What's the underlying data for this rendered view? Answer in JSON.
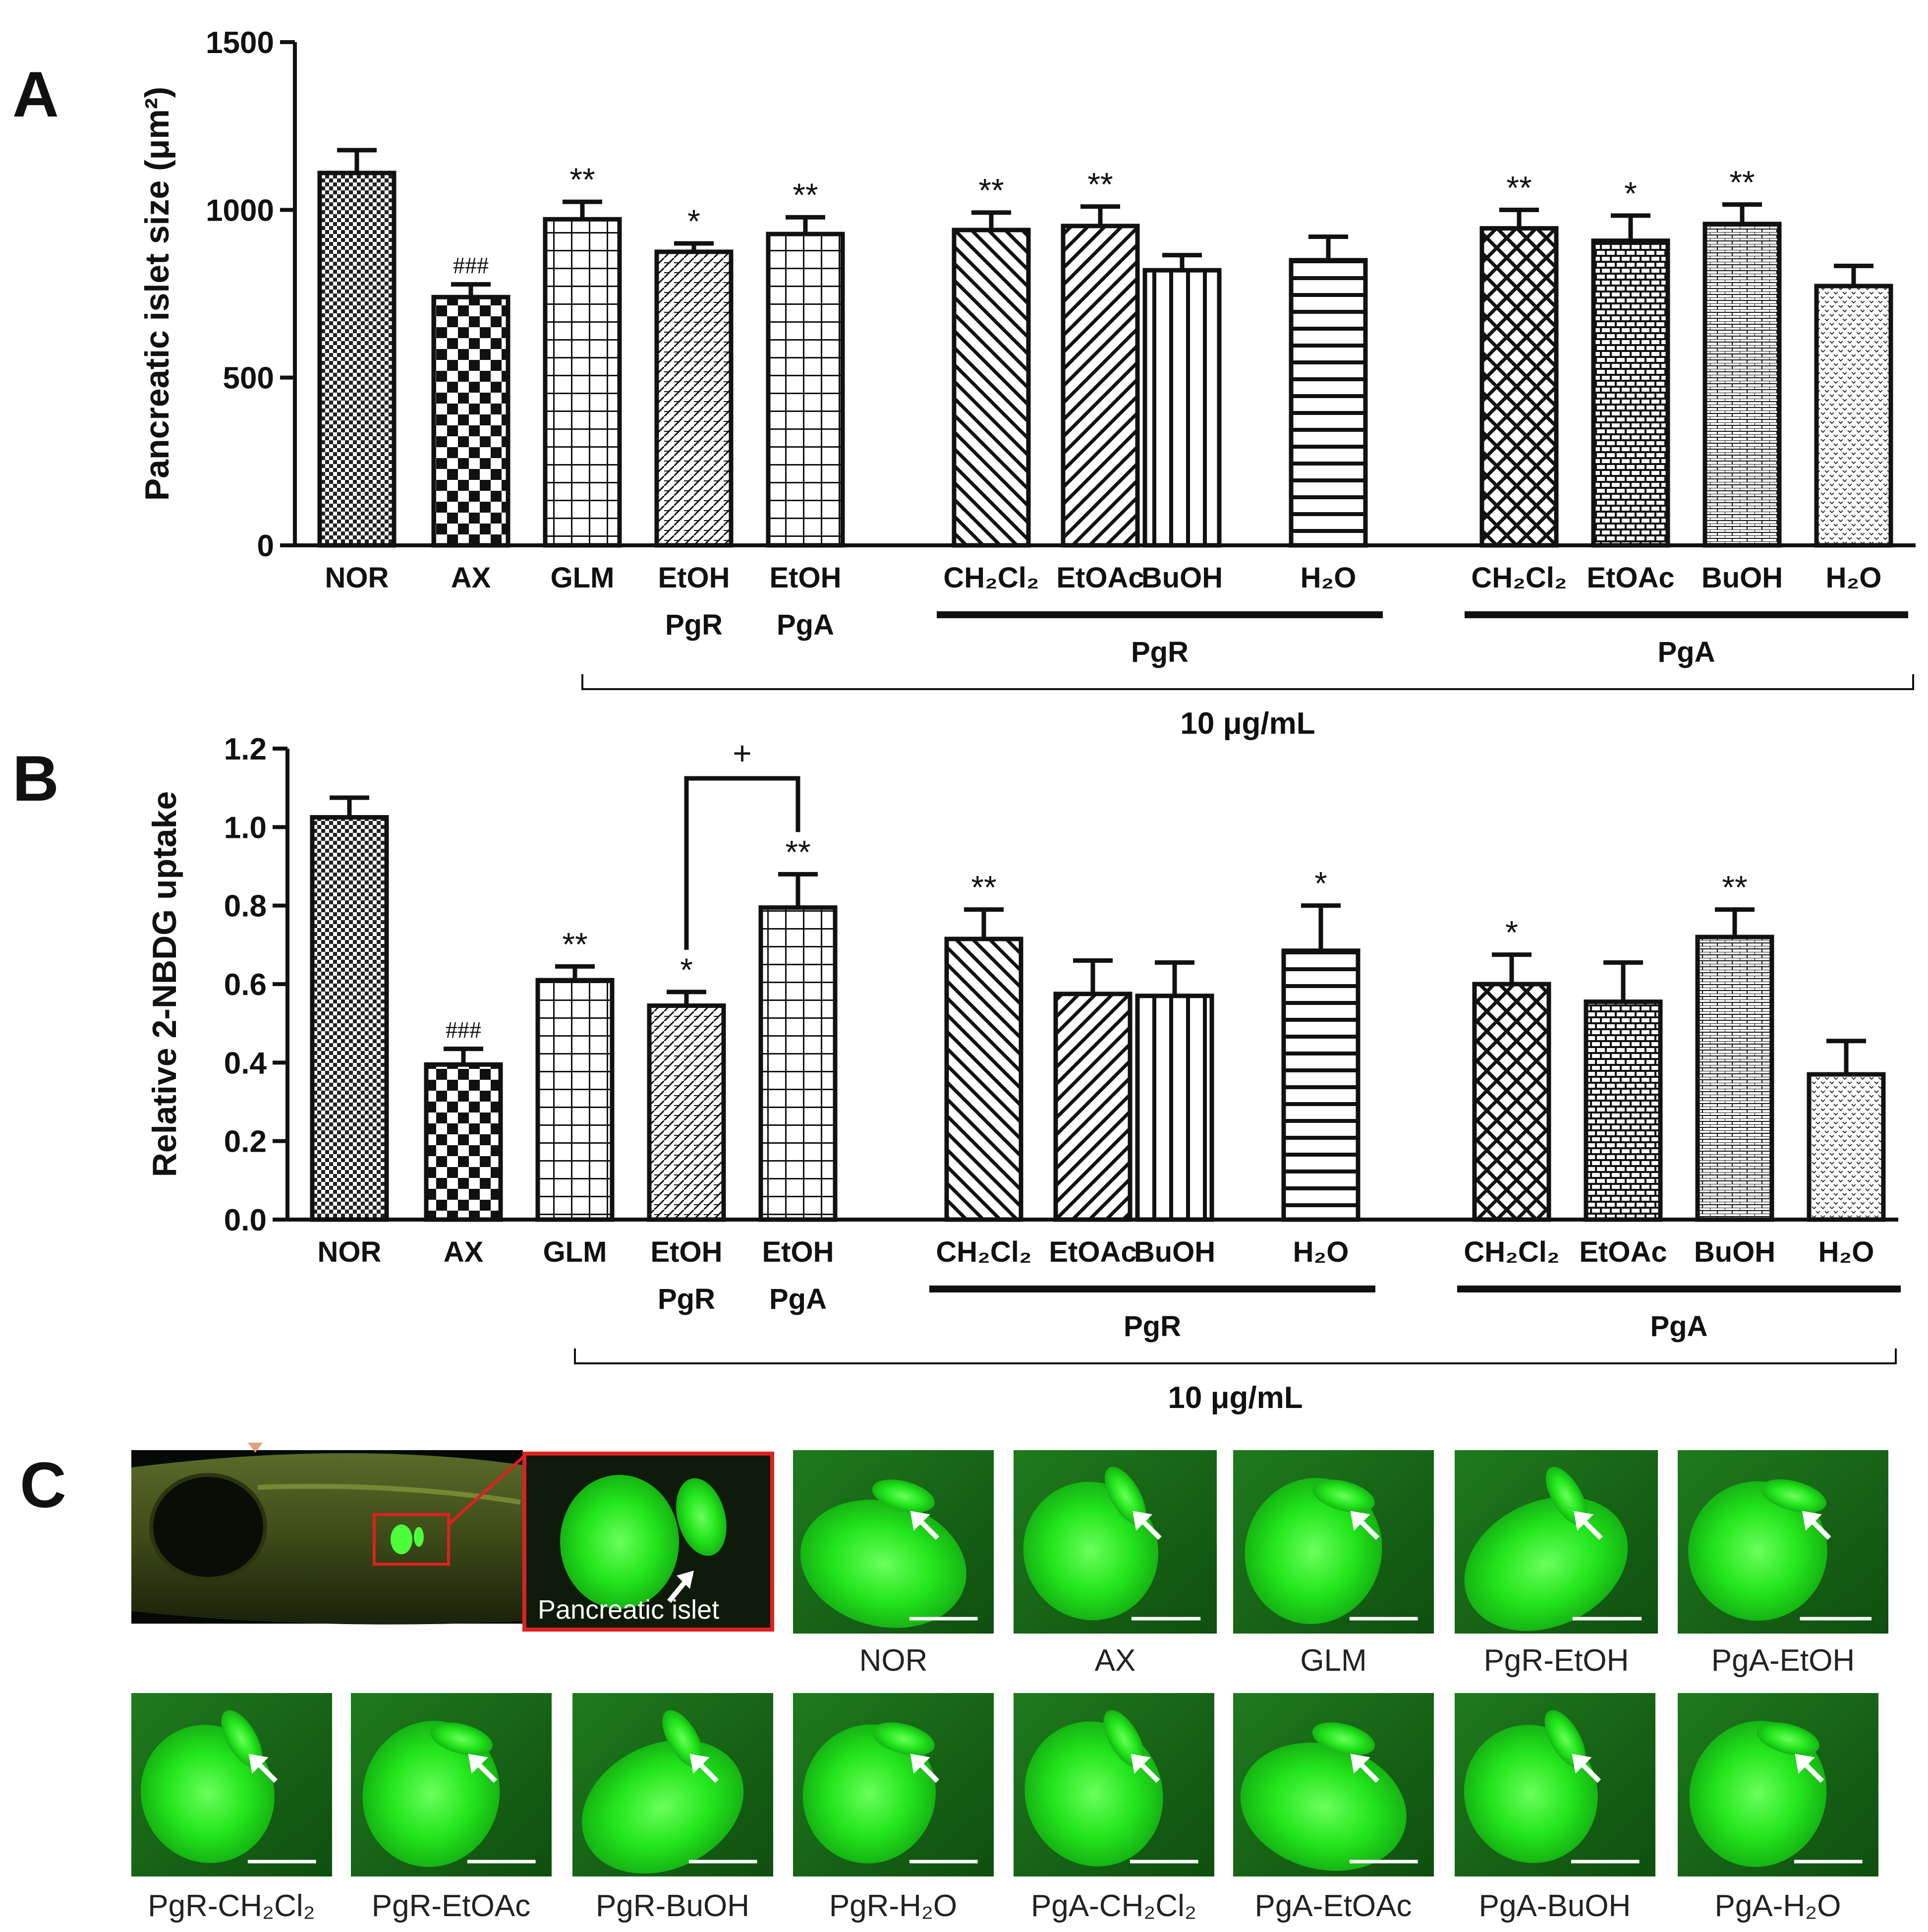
{
  "panels": {
    "a": "A",
    "b": "B",
    "c": "C"
  },
  "chart_data": [
    {
      "type": "bar",
      "panel": "A",
      "ylabel": "Pancreatic islet size (μm²)",
      "ylim": [
        0,
        1500
      ],
      "yticks": [
        "0",
        "500",
        "1000",
        "1500"
      ],
      "categories": [
        {
          "line1": "NOR",
          "line2": ""
        },
        {
          "line1": "AX",
          "line2": ""
        },
        {
          "line1": "GLM",
          "line2": ""
        },
        {
          "line1": "EtOH",
          "line2": "PgR"
        },
        {
          "line1": "EtOH",
          "line2": "PgA"
        },
        {
          "line1": "CH₂Cl₂",
          "line2": ""
        },
        {
          "line1": "EtOAc",
          "line2": ""
        },
        {
          "line1": "BuOH",
          "line2": ""
        },
        {
          "line1": "H₂O",
          "line2": ""
        },
        {
          "line1": "CH₂Cl₂",
          "line2": ""
        },
        {
          "line1": "EtOAc",
          "line2": ""
        },
        {
          "line1": "BuOH",
          "line2": ""
        },
        {
          "line1": "H₂O",
          "line2": ""
        }
      ],
      "values": [
        1110,
        740,
        972,
        875,
        928,
        940,
        952,
        820,
        850,
        945,
        908,
        958,
        773
      ],
      "errors": [
        68,
        38,
        52,
        25,
        50,
        52,
        58,
        45,
        70,
        55,
        75,
        58,
        60
      ],
      "significance": [
        "",
        "###",
        "**",
        "*",
        "**",
        "**",
        "**",
        "",
        "",
        "**",
        "*",
        "**",
        ""
      ],
      "groups": [
        {
          "label": "PgR"
        },
        {
          "label": "PgA"
        }
      ],
      "bracket_label": "10 μg/mL"
    },
    {
      "type": "bar",
      "panel": "B",
      "ylabel": "Relative 2-NBDG uptake",
      "ylim": [
        0,
        1.2
      ],
      "yticks": [
        "0.0",
        "0.2",
        "0.4",
        "0.6",
        "0.8",
        "1.0",
        "1.2"
      ],
      "categories": [
        {
          "line1": "NOR",
          "line2": ""
        },
        {
          "line1": "AX",
          "line2": ""
        },
        {
          "line1": "GLM",
          "line2": ""
        },
        {
          "line1": "EtOH",
          "line2": "PgR"
        },
        {
          "line1": "EtOH",
          "line2": "PgA"
        },
        {
          "line1": "CH₂Cl₂",
          "line2": ""
        },
        {
          "line1": "EtOAc",
          "line2": ""
        },
        {
          "line1": "BuOH",
          "line2": ""
        },
        {
          "line1": "H₂O",
          "line2": ""
        },
        {
          "line1": "CH₂Cl₂",
          "line2": ""
        },
        {
          "line1": "EtOAc",
          "line2": ""
        },
        {
          "line1": "BuOH",
          "line2": ""
        },
        {
          "line1": "H₂O",
          "line2": ""
        }
      ],
      "values": [
        1.025,
        0.395,
        0.61,
        0.545,
        0.795,
        0.715,
        0.575,
        0.57,
        0.685,
        0.6,
        0.555,
        0.72,
        0.37
      ],
      "errors": [
        0.05,
        0.04,
        0.035,
        0.035,
        0.085,
        0.075,
        0.085,
        0.085,
        0.115,
        0.075,
        0.1,
        0.07,
        0.085
      ],
      "significance": [
        "",
        "###",
        "**",
        "*",
        "**",
        "**",
        "",
        "",
        "*",
        "*",
        "",
        "**",
        ""
      ],
      "comparison": {
        "from": 3,
        "to": 4,
        "label": "+"
      },
      "groups": [
        {
          "label": "PgR"
        },
        {
          "label": "PgA"
        }
      ],
      "bracket_label": "10 μg/mL"
    }
  ],
  "panel_c": {
    "inset_label": "Pancreatic islet",
    "row1_captions": [
      "NOR",
      "AX",
      "GLM",
      "PgR-EtOH",
      "PgA-EtOH"
    ],
    "row2_captions": [
      "PgR-CH₂Cl₂",
      "PgR-EtOAc",
      "PgR-BuOH",
      "PgR-H₂O",
      "PgA-CH₂Cl₂",
      "PgA-EtOAc",
      "PgA-BuOH",
      "PgA-H₂O"
    ]
  },
  "colors": {
    "fluorescence": "#22e61c",
    "background": "#0b3a0b",
    "highlight": "#e02020"
  }
}
